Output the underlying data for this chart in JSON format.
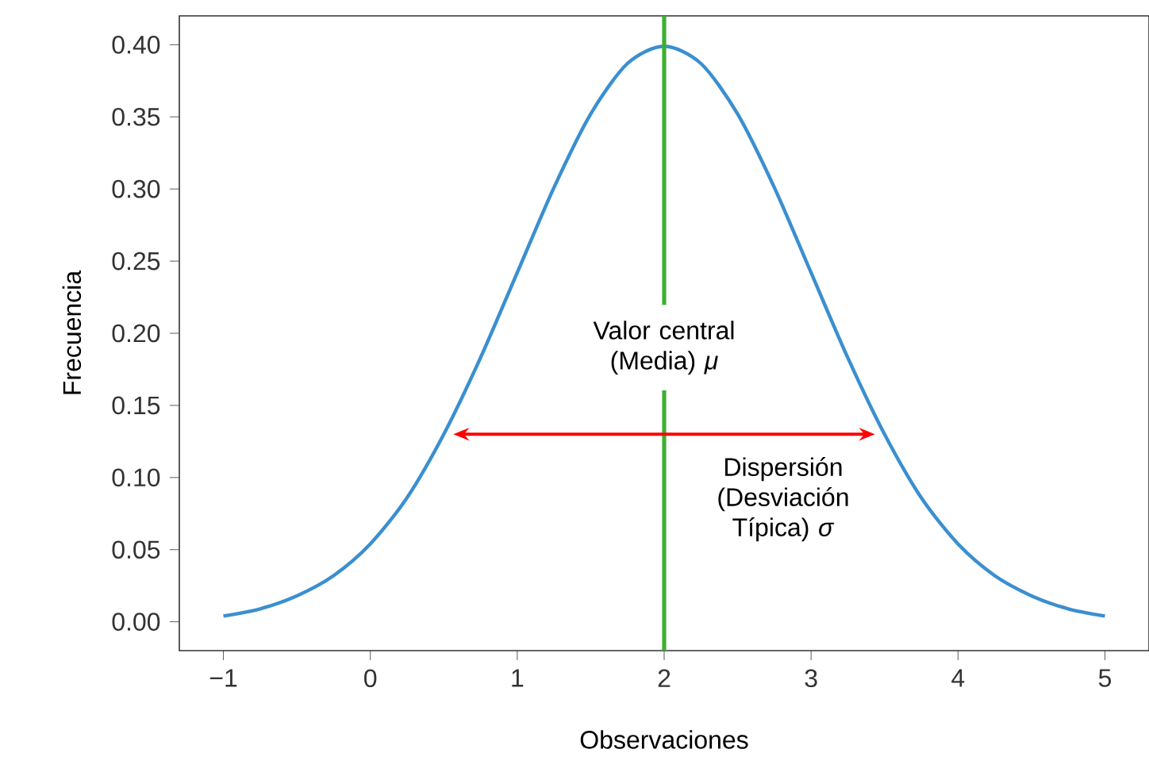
{
  "chart_data": {
    "type": "line",
    "xlabel": "Observaciones",
    "ylabel": "Frecuencia",
    "xlim": [
      -1.3,
      5.3
    ],
    "ylim": [
      -0.02,
      0.42
    ],
    "xticks": [
      {
        "value": -1,
        "label": "−1"
      },
      0,
      1,
      2,
      3,
      4,
      5
    ],
    "yticks": [
      {
        "value": 0,
        "label": "0.00"
      },
      {
        "value": 0.05,
        "label": "0.05"
      },
      {
        "value": 0.1,
        "label": "0.10"
      },
      {
        "value": 0.15,
        "label": "0.15"
      },
      {
        "value": 0.2,
        "label": "0.20"
      },
      {
        "value": 0.25,
        "label": "0.25"
      },
      {
        "value": 0.3,
        "label": "0.30"
      },
      {
        "value": 0.35,
        "label": "0.35"
      },
      {
        "value": 0.4,
        "label": "0.40"
      }
    ],
    "series": [
      {
        "color": "#3a8fd0",
        "x": [
          -1,
          -0.75,
          -0.5,
          -0.25,
          0,
          0.25,
          0.5,
          0.75,
          1,
          1.25,
          1.5,
          1.75,
          2,
          2.25,
          2.5,
          2.75,
          3,
          3.25,
          3.5,
          3.75,
          4,
          4.25,
          4.5,
          4.75,
          5
        ],
        "values": [
          0.004,
          0.009,
          0.018,
          0.032,
          0.054,
          0.086,
          0.13,
          0.183,
          0.242,
          0.301,
          0.352,
          0.387,
          0.399,
          0.387,
          0.352,
          0.301,
          0.242,
          0.183,
          0.13,
          0.086,
          0.054,
          0.032,
          0.018,
          0.009,
          0.004
        ]
      }
    ],
    "ref_lines": [
      {
        "axis": "x",
        "value": 2,
        "label": "Valor central (Media) *μ*",
        "color": "#3cb030"
      }
    ],
    "annotations": [
      "Dispersión (Desviación Típica) *σ*"
    ]
  }
}
